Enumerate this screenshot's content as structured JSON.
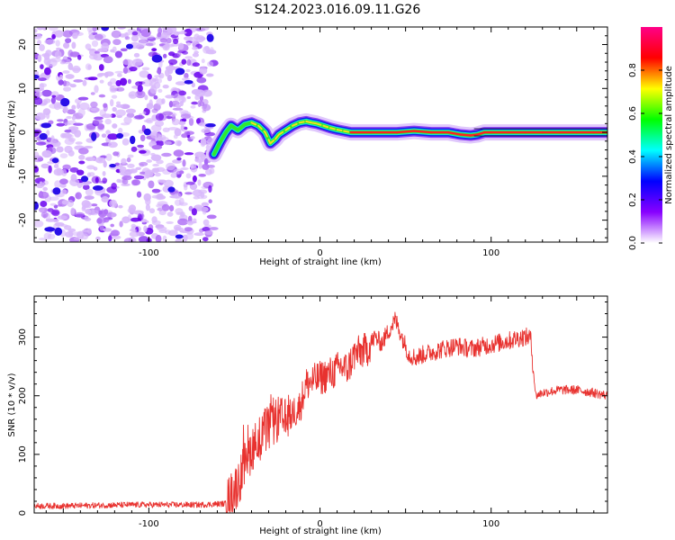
{
  "title": "S124.2023.016.09.11.G26",
  "chart_data": [
    {
      "type": "heatmap",
      "name": "spectrogram",
      "xlabel": "Height of straight line (km)",
      "ylabel": "Frequency (Hz)",
      "xlim": [
        -167,
        168
      ],
      "ylim": [
        -25,
        24
      ],
      "xticks": [
        -100,
        0,
        100
      ],
      "yticks": [
        -20,
        -10,
        0,
        10,
        20
      ],
      "noise_region_x": [
        -167,
        -62
      ],
      "ridge": {
        "x": [
          -62,
          -58,
          -55,
          -52,
          -48,
          -44,
          -40,
          -36,
          -32,
          -29,
          -26,
          -24,
          -20,
          -16,
          -12,
          -8,
          -5,
          -2,
          2,
          6,
          10,
          14,
          18,
          30,
          45,
          55,
          65,
          75,
          82,
          88,
          92,
          96,
          100,
          110,
          120,
          130,
          140,
          150,
          160,
          168
        ],
        "y": [
          -5,
          -2,
          0,
          1.5,
          0.5,
          1.8,
          2.2,
          1.5,
          0,
          -2.5,
          -1.5,
          -0.5,
          0.5,
          1.5,
          2.2,
          2.5,
          2.2,
          2,
          1.5,
          1,
          0.6,
          0.3,
          0,
          0,
          0,
          0.3,
          0,
          0,
          -0.5,
          -0.7,
          -0.5,
          0,
          0,
          0,
          0,
          0,
          0,
          0,
          0,
          0
        ]
      },
      "colorbar": {
        "label": "Normalized spectral amplitude",
        "range": [
          0,
          1
        ],
        "ticks": [
          0.0,
          0.2,
          0.4,
          0.6,
          0.8
        ],
        "tick_labels": [
          "0.0",
          "0.2",
          "0.4",
          "0.6",
          "0.8"
        ],
        "colors": [
          "#ffffff",
          "#8800ff",
          "#0000ff",
          "#00ffff",
          "#00ff00",
          "#ffff00",
          "#ff0000",
          "#ff0088"
        ]
      }
    },
    {
      "type": "line",
      "name": "snr",
      "xlabel": "Height of straight line (km)",
      "ylabel": "SNR (10 * v/v)",
      "xlim": [
        -167,
        168
      ],
      "ylim": [
        0,
        370
      ],
      "xticks": [
        -100,
        0,
        100
      ],
      "yticks": [
        0,
        100,
        200,
        300
      ],
      "color": "#e8322f",
      "series": [
        {
          "x": [
            -167,
            -150,
            -130,
            -110,
            -90,
            -70,
            -55,
            -48,
            -44,
            -40,
            -36,
            -32,
            -28,
            -24,
            -20,
            -16,
            -12,
            -8,
            -4,
            0,
            4,
            8,
            12,
            16,
            20,
            24,
            28,
            32,
            36,
            40,
            44,
            48,
            52,
            56,
            60,
            66,
            72,
            80,
            88,
            96,
            104,
            112,
            118,
            123,
            125,
            126,
            130,
            140,
            150,
            160,
            168
          ],
          "y": [
            12,
            12,
            13,
            14,
            14,
            14,
            16,
            50,
            80,
            110,
            125,
            140,
            150,
            160,
            155,
            170,
            180,
            220,
            225,
            230,
            235,
            240,
            250,
            245,
            270,
            275,
            280,
            300,
            290,
            310,
            330,
            300,
            270,
            265,
            270,
            275,
            280,
            285,
            280,
            285,
            290,
            295,
            300,
            300,
            235,
            200,
            205,
            210,
            210,
            205,
            200
          ]
        }
      ],
      "noise": [
        {
          "x": [
            -167,
            -55
          ],
          "amp": 5
        },
        {
          "x": [
            -55,
            -20
          ],
          "amp": 40
        },
        {
          "x": [
            -20,
            30
          ],
          "amp": 30
        },
        {
          "x": [
            30,
            125
          ],
          "amp": 16
        },
        {
          "x": [
            125,
            168
          ],
          "amp": 8
        }
      ]
    }
  ]
}
